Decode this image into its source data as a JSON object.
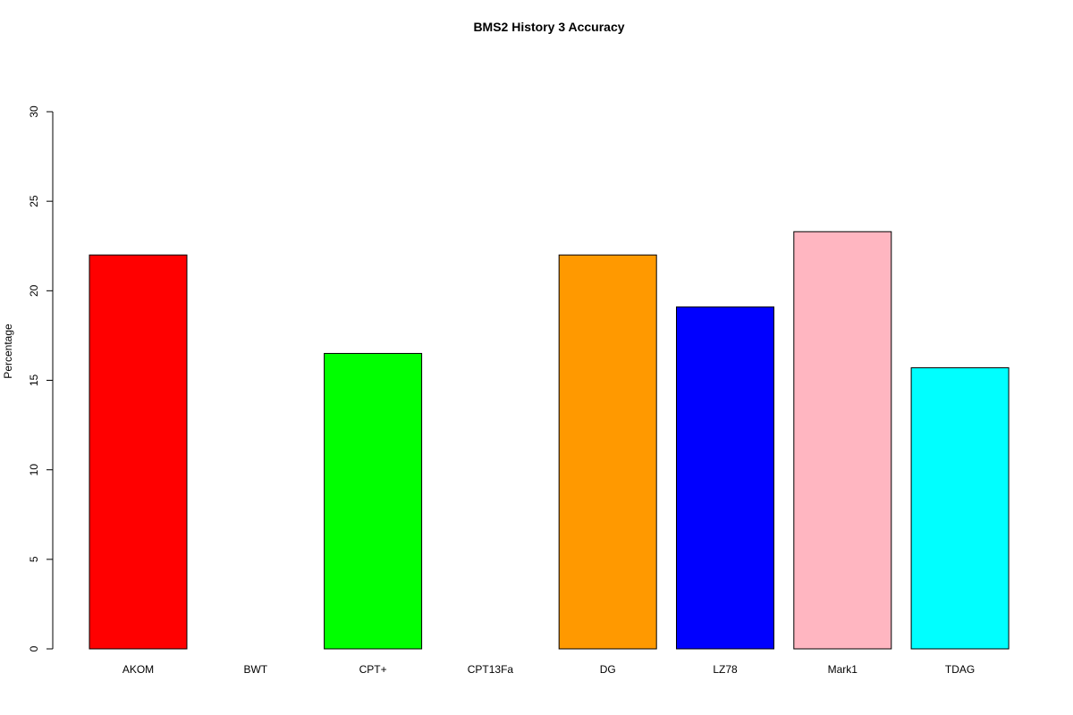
{
  "chart_data": {
    "type": "bar",
    "title": "BMS2  History  3  Accuracy",
    "xlabel": "",
    "ylabel": "Percentage",
    "ylim": [
      0,
      30
    ],
    "yticks": [
      0,
      5,
      10,
      15,
      20,
      25,
      30
    ],
    "grid": false,
    "legend": "none",
    "categories": [
      "AKOM",
      "BWT",
      "CPT+",
      "CPT13Fa",
      "DG",
      "LZ78",
      "Mark1",
      "TDAG"
    ],
    "values": [
      22.0,
      0.0,
      16.5,
      0.0,
      22.0,
      19.1,
      23.3,
      15.7
    ],
    "colors": [
      "#ff0000",
      "#ffffff",
      "#00ff00",
      "#ffffff",
      "#ff9900",
      "#0000ff",
      "#ffb6c1",
      "#00ffff"
    ]
  }
}
